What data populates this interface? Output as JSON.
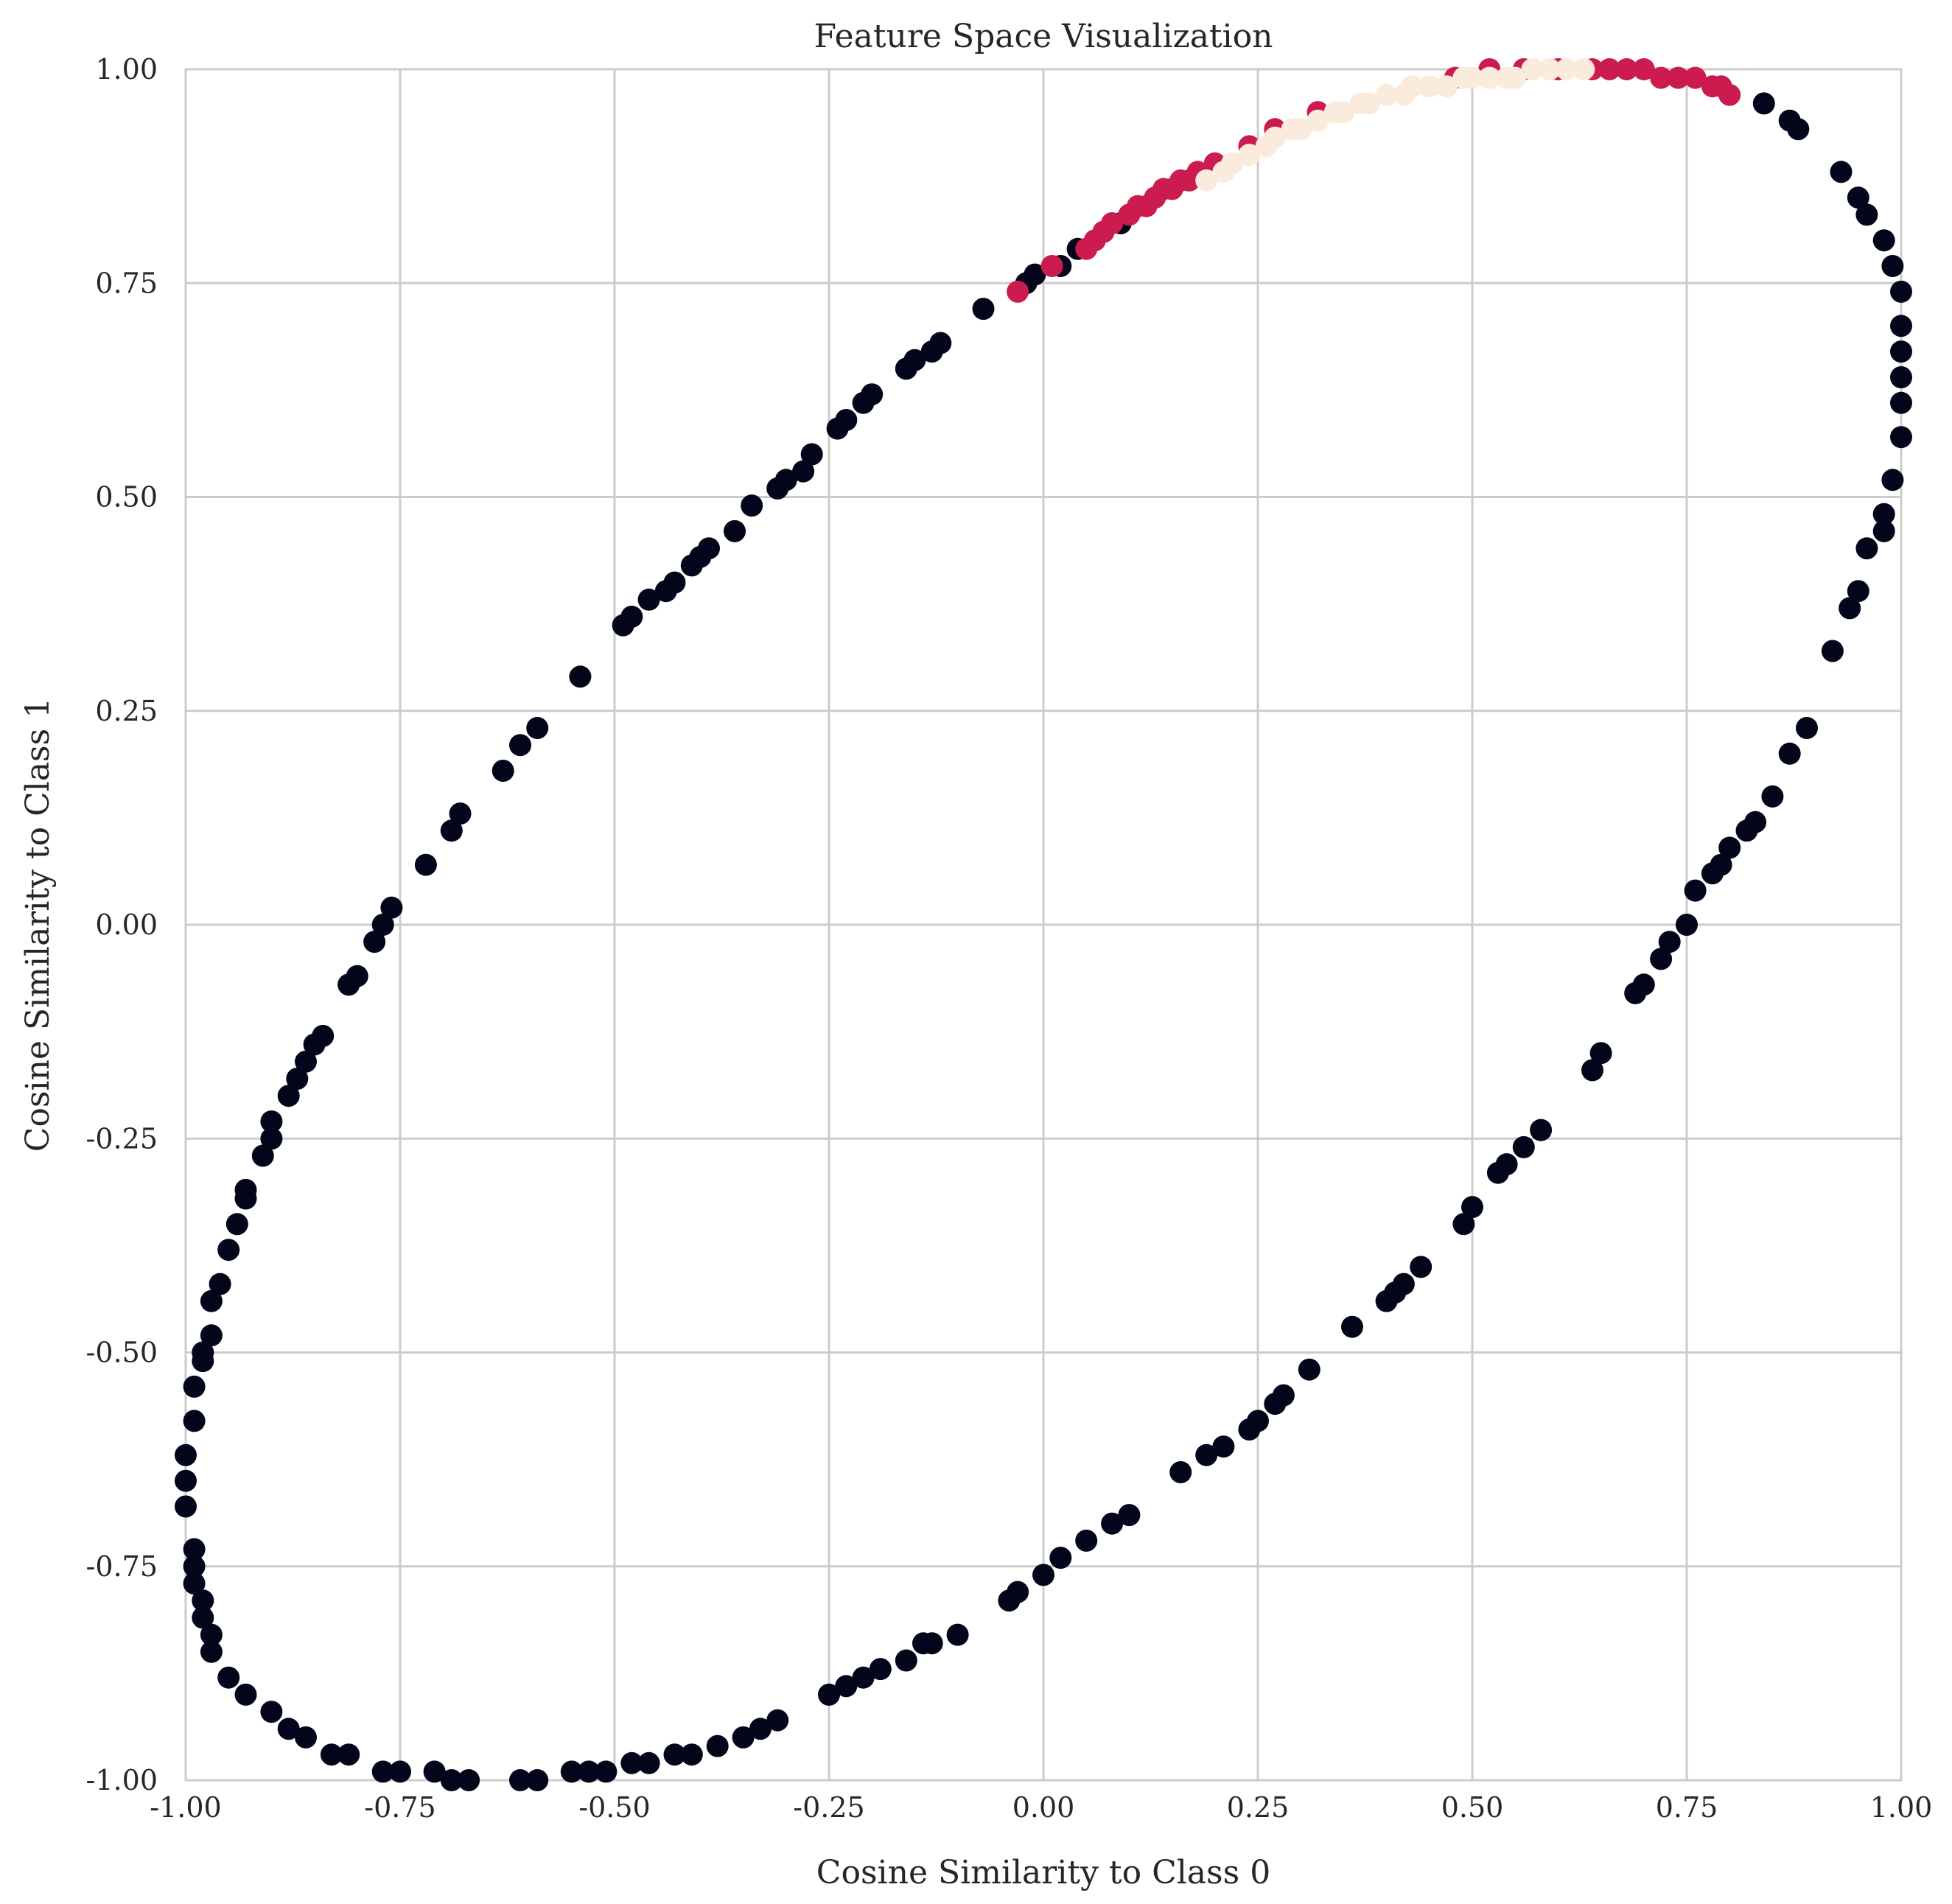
{
  "chart_data": {
    "type": "scatter",
    "title": "Feature Space Visualization",
    "xlabel": "Cosine Similarity to Class 0",
    "ylabel": "Cosine Similarity to Class 1",
    "xlim": [
      -1.0,
      1.0
    ],
    "ylim": [
      -1.0,
      1.0
    ],
    "grid": true,
    "legend": "none",
    "x_ticks": [
      "-1.00",
      "-0.75",
      "-0.50",
      "-0.25",
      "0.00",
      "0.25",
      "0.50",
      "0.75",
      "1.00"
    ],
    "y_ticks": [
      "-1.00",
      "-0.75",
      "-0.50",
      "-0.25",
      "0.00",
      "0.25",
      "0.50",
      "0.75",
      "1.00"
    ],
    "colors": {
      "class_0": "#03051a",
      "class_1": "#cb1b4f",
      "class_2": "#faebdd",
      "grid": "#cccccc"
    },
    "series": [
      {
        "color": "#03051a",
        "points": [
          [
            -1.0,
            -0.68
          ],
          [
            -1.0,
            -0.65
          ],
          [
            -1.0,
            -0.62
          ],
          [
            -0.99,
            -0.58
          ],
          [
            -0.99,
            -0.54
          ],
          [
            -0.98,
            -0.51
          ],
          [
            -0.98,
            -0.5
          ],
          [
            -0.97,
            -0.48
          ],
          [
            -0.97,
            -0.44
          ],
          [
            -0.96,
            -0.42
          ],
          [
            -0.95,
            -0.38
          ],
          [
            -0.94,
            -0.35
          ],
          [
            -0.93,
            -0.32
          ],
          [
            -0.93,
            -0.31
          ],
          [
            -0.91,
            -0.27
          ],
          [
            -0.9,
            -0.25
          ],
          [
            -0.9,
            -0.23
          ],
          [
            -0.88,
            -0.2
          ],
          [
            -0.87,
            -0.18
          ],
          [
            -0.86,
            -0.16
          ],
          [
            -0.85,
            -0.14
          ],
          [
            -0.84,
            -0.13
          ],
          [
            -0.81,
            -0.07
          ],
          [
            -0.81,
            -0.07
          ],
          [
            -0.8,
            -0.06
          ],
          [
            -0.78,
            -0.02
          ],
          [
            -0.77,
            -0.0
          ],
          [
            -0.76,
            0.02
          ],
          [
            -0.72,
            0.07
          ],
          [
            -0.69,
            0.11
          ],
          [
            -0.68,
            0.13
          ],
          [
            -0.63,
            0.18
          ],
          [
            -0.61,
            0.21
          ],
          [
            -0.59,
            0.23
          ],
          [
            -0.54,
            0.29
          ],
          [
            -0.49,
            0.35
          ],
          [
            -0.48,
            0.36
          ],
          [
            -0.46,
            0.38
          ],
          [
            -0.44,
            0.39
          ],
          [
            -0.43,
            0.4
          ],
          [
            -0.41,
            0.42
          ],
          [
            -0.4,
            0.43
          ],
          [
            -0.39,
            0.44
          ],
          [
            -0.36,
            0.46
          ],
          [
            -0.34,
            0.49
          ],
          [
            -0.31,
            0.51
          ],
          [
            -0.3,
            0.52
          ],
          [
            -0.28,
            0.53
          ],
          [
            -0.27,
            0.55
          ],
          [
            -0.24,
            0.58
          ],
          [
            -0.23,
            0.59
          ],
          [
            -0.21,
            0.61
          ],
          [
            -0.2,
            0.62
          ],
          [
            -0.16,
            0.65
          ],
          [
            -0.15,
            0.66
          ],
          [
            -0.13,
            0.67
          ],
          [
            -0.12,
            0.68
          ],
          [
            -0.07,
            0.72
          ],
          [
            -0.02,
            0.75
          ],
          [
            -0.01,
            0.76
          ],
          [
            0.02,
            0.77
          ],
          [
            0.04,
            0.79
          ],
          [
            0.93,
            0.88
          ],
          [
            0.95,
            0.85
          ],
          [
            0.96,
            0.83
          ],
          [
            0.98,
            0.8
          ],
          [
            0.99,
            0.77
          ],
          [
            1.0,
            0.74
          ],
          [
            1.0,
            0.7
          ],
          [
            1.0,
            0.67
          ],
          [
            1.0,
            0.64
          ],
          [
            1.0,
            0.61
          ],
          [
            1.0,
            0.57
          ],
          [
            0.99,
            0.52
          ],
          [
            0.98,
            0.48
          ],
          [
            0.98,
            0.46
          ],
          [
            0.96,
            0.44
          ],
          [
            0.95,
            0.39
          ],
          [
            0.94,
            0.37
          ],
          [
            0.92,
            0.32
          ],
          [
            0.89,
            0.23
          ],
          [
            0.87,
            0.2
          ],
          [
            0.85,
            0.15
          ],
          [
            0.83,
            0.12
          ],
          [
            0.82,
            0.11
          ],
          [
            0.8,
            0.09
          ],
          [
            0.79,
            0.07
          ],
          [
            0.78,
            0.06
          ],
          [
            0.76,
            0.04
          ],
          [
            0.75,
            0.0
          ],
          [
            0.73,
            -0.02
          ],
          [
            0.72,
            -0.04
          ],
          [
            0.7,
            -0.07
          ],
          [
            0.69,
            -0.08
          ],
          [
            0.65,
            -0.15
          ],
          [
            0.64,
            -0.17
          ],
          [
            0.58,
            -0.24
          ],
          [
            0.56,
            -0.26
          ],
          [
            0.54,
            -0.28
          ],
          [
            0.53,
            -0.29
          ],
          [
            0.5,
            -0.33
          ],
          [
            0.49,
            -0.35
          ],
          [
            0.44,
            -0.4
          ],
          [
            0.42,
            -0.42
          ],
          [
            0.41,
            -0.43
          ],
          [
            0.4,
            -0.44
          ],
          [
            0.36,
            -0.47
          ],
          [
            0.31,
            -0.52
          ],
          [
            0.28,
            -0.55
          ],
          [
            0.27,
            -0.56
          ],
          [
            0.25,
            -0.58
          ],
          [
            0.24,
            -0.59
          ],
          [
            0.21,
            -0.61
          ],
          [
            0.19,
            -0.62
          ],
          [
            0.16,
            -0.64
          ],
          [
            0.1,
            -0.69
          ],
          [
            0.08,
            -0.7
          ],
          [
            0.05,
            -0.72
          ],
          [
            0.02,
            -0.74
          ],
          [
            -0.0,
            -0.76
          ],
          [
            -0.03,
            -0.78
          ],
          [
            -0.04,
            -0.79
          ],
          [
            -0.1,
            -0.83
          ],
          [
            -0.13,
            -0.84
          ],
          [
            -0.14,
            -0.84
          ],
          [
            -0.16,
            -0.86
          ],
          [
            -0.19,
            -0.87
          ],
          [
            -0.21,
            -0.88
          ],
          [
            -0.23,
            -0.89
          ],
          [
            -0.25,
            -0.9
          ],
          [
            -0.31,
            -0.93
          ],
          [
            -0.33,
            -0.94
          ],
          [
            -0.35,
            -0.95
          ],
          [
            -0.38,
            -0.96
          ],
          [
            -0.41,
            -0.97
          ],
          [
            -0.43,
            -0.97
          ],
          [
            -0.46,
            -0.98
          ],
          [
            -0.48,
            -0.98
          ],
          [
            -0.51,
            -0.99
          ],
          [
            -0.53,
            -0.99
          ],
          [
            -0.55,
            -0.99
          ],
          [
            -0.59,
            -1.0
          ],
          [
            -0.61,
            -1.0
          ],
          [
            -0.67,
            -1.0
          ],
          [
            -0.69,
            -1.0
          ],
          [
            -0.71,
            -0.99
          ],
          [
            -0.75,
            -0.99
          ],
          [
            -0.77,
            -0.99
          ],
          [
            -0.81,
            -0.97
          ],
          [
            -0.83,
            -0.97
          ],
          [
            -0.86,
            -0.95
          ],
          [
            -0.88,
            -0.94
          ],
          [
            -0.9,
            -0.92
          ],
          [
            -0.93,
            -0.9
          ],
          [
            -0.95,
            -0.88
          ],
          [
            -0.97,
            -0.85
          ],
          [
            -0.97,
            -0.83
          ],
          [
            -0.98,
            -0.81
          ],
          [
            -0.98,
            -0.79
          ],
          [
            -0.99,
            -0.77
          ],
          [
            -0.99,
            -0.75
          ],
          [
            -0.99,
            -0.73
          ],
          [
            0.07,
            0.81
          ],
          [
            0.09,
            0.82
          ],
          [
            0.84,
            0.96
          ],
          [
            0.87,
            0.94
          ],
          [
            0.88,
            0.93
          ]
        ]
      },
      {
        "color": "#cb1b4f",
        "points": [
          [
            -0.03,
            0.74
          ],
          [
            0.01,
            0.77
          ],
          [
            0.05,
            0.79
          ],
          [
            0.06,
            0.8
          ],
          [
            0.07,
            0.81
          ],
          [
            0.08,
            0.82
          ],
          [
            0.1,
            0.83
          ],
          [
            0.11,
            0.84
          ],
          [
            0.12,
            0.84
          ],
          [
            0.13,
            0.85
          ],
          [
            0.14,
            0.86
          ],
          [
            0.15,
            0.86
          ],
          [
            0.16,
            0.87
          ],
          [
            0.17,
            0.87
          ],
          [
            0.18,
            0.88
          ],
          [
            0.2,
            0.89
          ],
          [
            0.24,
            0.91
          ],
          [
            0.27,
            0.93
          ],
          [
            0.32,
            0.95
          ],
          [
            0.48,
            0.99
          ],
          [
            0.52,
            1.0
          ],
          [
            0.56,
            1.0
          ],
          [
            0.6,
            1.0
          ],
          [
            0.64,
            1.0
          ],
          [
            0.66,
            1.0
          ],
          [
            0.68,
            1.0
          ],
          [
            0.7,
            1.0
          ],
          [
            0.72,
            0.99
          ],
          [
            0.74,
            0.99
          ],
          [
            0.76,
            0.99
          ],
          [
            0.78,
            0.98
          ],
          [
            0.79,
            0.98
          ],
          [
            0.8,
            0.97
          ]
        ]
      },
      {
        "color": "#faebdd",
        "points": [
          [
            0.19,
            0.87
          ],
          [
            0.21,
            0.88
          ],
          [
            0.22,
            0.89
          ],
          [
            0.24,
            0.9
          ],
          [
            0.26,
            0.91
          ],
          [
            0.27,
            0.92
          ],
          [
            0.29,
            0.93
          ],
          [
            0.3,
            0.93
          ],
          [
            0.32,
            0.94
          ],
          [
            0.34,
            0.95
          ],
          [
            0.35,
            0.95
          ],
          [
            0.37,
            0.96
          ],
          [
            0.38,
            0.96
          ],
          [
            0.4,
            0.97
          ],
          [
            0.42,
            0.97
          ],
          [
            0.43,
            0.98
          ],
          [
            0.45,
            0.98
          ],
          [
            0.47,
            0.98
          ],
          [
            0.49,
            0.99
          ],
          [
            0.5,
            0.99
          ],
          [
            0.52,
            0.99
          ],
          [
            0.54,
            0.99
          ],
          [
            0.55,
            0.99
          ],
          [
            0.57,
            1.0
          ],
          [
            0.59,
            1.0
          ],
          [
            0.61,
            1.0
          ],
          [
            0.63,
            1.0
          ]
        ]
      }
    ]
  }
}
